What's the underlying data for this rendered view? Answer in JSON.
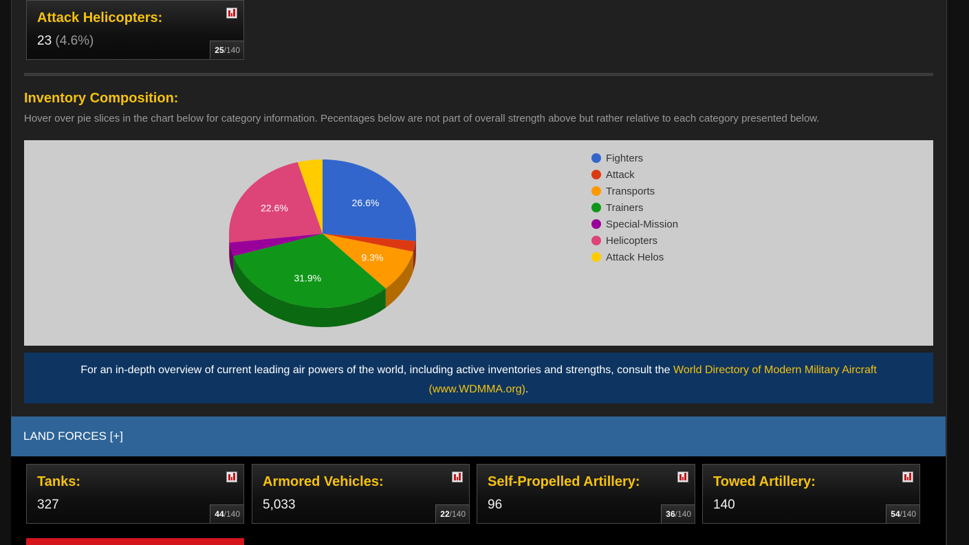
{
  "attack_helicopters": {
    "title": "Attack Helicopters:",
    "value": "23",
    "percent": "(4.6%)",
    "rank": "25",
    "rank_total": "/140",
    "icon": "bar-chart-icon"
  },
  "inventory": {
    "title": "Inventory Composition:",
    "description": "Hover over pie slices in the chart below for category information. Pecentages below are not part of overall strength above but rather relative to each category presented below."
  },
  "chart_data": {
    "type": "pie",
    "labels": [
      "Fighters",
      "Attack",
      "Transports",
      "Trainers",
      "Special-Mission",
      "Helicopters",
      "Attack Helos"
    ],
    "values": [
      26.6,
      2.3,
      9.3,
      31.9,
      3.0,
      22.6,
      4.3
    ],
    "colors": [
      "#3366cc",
      "#dc3912",
      "#ff9900",
      "#109618",
      "#990099",
      "#dd4477",
      "#ffcc00"
    ],
    "data_labels": [
      "26.6%",
      "",
      "9.3%",
      "31.9%",
      "",
      "22.6%",
      ""
    ],
    "legend_position": "right",
    "is_3d": true
  },
  "info_bar": {
    "text": "For an in-depth overview of current leading air powers of the world, including active inventories and strengths, consult the ",
    "link_text": "World Directory of Modern Military Aircraft (www.WDMMA.org)",
    "tail": "."
  },
  "land_forces": {
    "header": "LAND FORCES [+]",
    "cards": [
      {
        "title": "Tanks:",
        "value": "327",
        "rank": "44",
        "rank_total": "/140"
      },
      {
        "title": "Armored Vehicles:",
        "value": "5,033",
        "rank": "22",
        "rank_total": "/140"
      },
      {
        "title": "Self-Propelled Artillery:",
        "value": "96",
        "rank": "36",
        "rank_total": "/140"
      },
      {
        "title": "Towed Artillery:",
        "value": "140",
        "rank": "54",
        "rank_total": "/140"
      }
    ]
  }
}
